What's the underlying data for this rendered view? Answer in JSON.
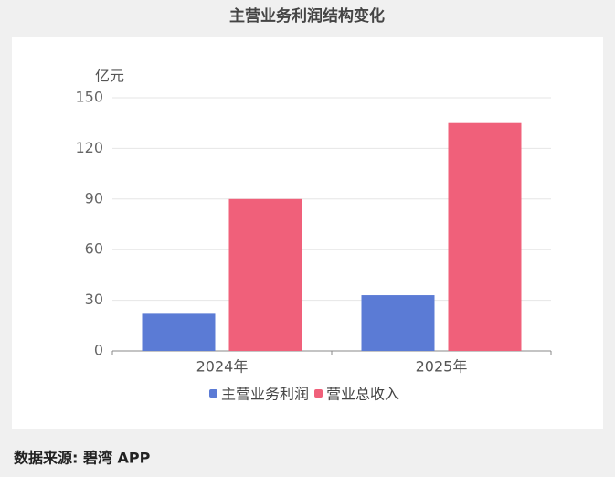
{
  "chart_data": {
    "type": "bar",
    "title": "主营业务利润结构变化",
    "y_label": "亿元",
    "categories": [
      "2024年",
      "2025年"
    ],
    "series": [
      {
        "name": "主营业务利润",
        "color": "#5b7bd5",
        "values": [
          22,
          33
        ]
      },
      {
        "name": "营业总收入",
        "color": "#f0607a",
        "values": [
          90,
          135
        ]
      }
    ],
    "ylim": [
      0,
      150
    ],
    "yticks": [
      0,
      30,
      60,
      90,
      120,
      150
    ],
    "grid": true,
    "legend": "bottom",
    "source": "数据来源: 碧湾 APP"
  }
}
